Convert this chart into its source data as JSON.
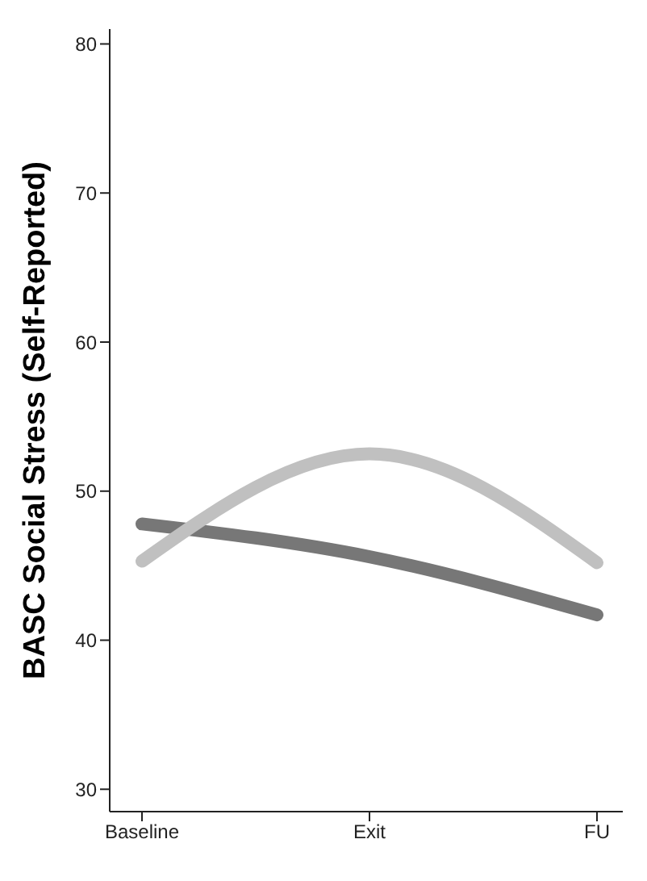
{
  "chart_data": {
    "type": "line",
    "ylabel": "BASC Social Stress (Self-Reported)",
    "categories": [
      "Baseline",
      "Exit",
      "FU"
    ],
    "ylim": [
      28.5,
      81
    ],
    "yticks": [
      30,
      40,
      50,
      60,
      70,
      80
    ],
    "grid": false,
    "legend": false,
    "marker": "none",
    "line_style": "solid",
    "series": [
      {
        "color": "#777777",
        "values": [
          47.8,
          45.6,
          41.7
        ]
      },
      {
        "color": "#c0c0c0",
        "values": [
          45.3,
          52.5,
          45.2
        ]
      }
    ]
  }
}
